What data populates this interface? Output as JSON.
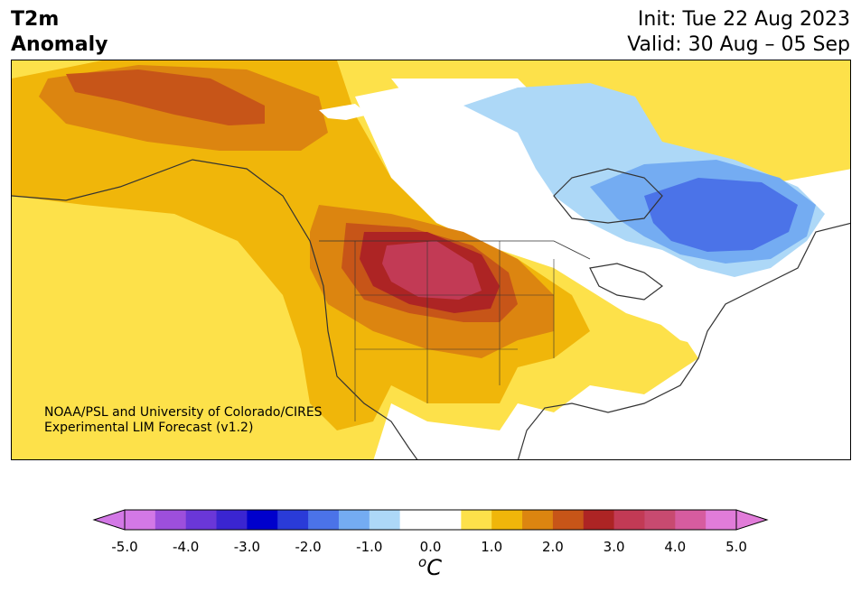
{
  "header": {
    "title_line1": "T2m",
    "title_line2": "Anomaly",
    "init_text": "Init: Tue 22 Aug 2023",
    "valid_text": "Valid: 30 Aug – 05 Sep"
  },
  "map": {
    "region": "North America",
    "projection_hint": "Lambert conformal",
    "credit_line1": "NOAA/PSL and University of Colorado/CIRES",
    "credit_line2": "Experimental LIM Forecast (v1.2)"
  },
  "colorbar": {
    "unit_base": "C",
    "unit_super": "o",
    "tick_labels": [
      "-5.0",
      "-4.0",
      "-3.0",
      "-2.0",
      "-1.0",
      "0.0",
      "1.0",
      "2.0",
      "3.0",
      "4.0",
      "5.0"
    ],
    "bin_colors": [
      "#d378e6",
      "#9d4fdc",
      "#6a37d8",
      "#3a25d1",
      "#0000cc",
      "#2a3bd8",
      "#4b73e8",
      "#74acf2",
      "#add8f7",
      "#ffffff",
      "#ffffff",
      "#fde14a",
      "#f0b60a",
      "#dc8510",
      "#c75518",
      "#ad2424",
      "#c23a55",
      "#c84a70",
      "#d65c9f",
      "#e17cd9"
    ],
    "under_color": "#d378e6",
    "over_color": "#e17cd9"
  }
}
